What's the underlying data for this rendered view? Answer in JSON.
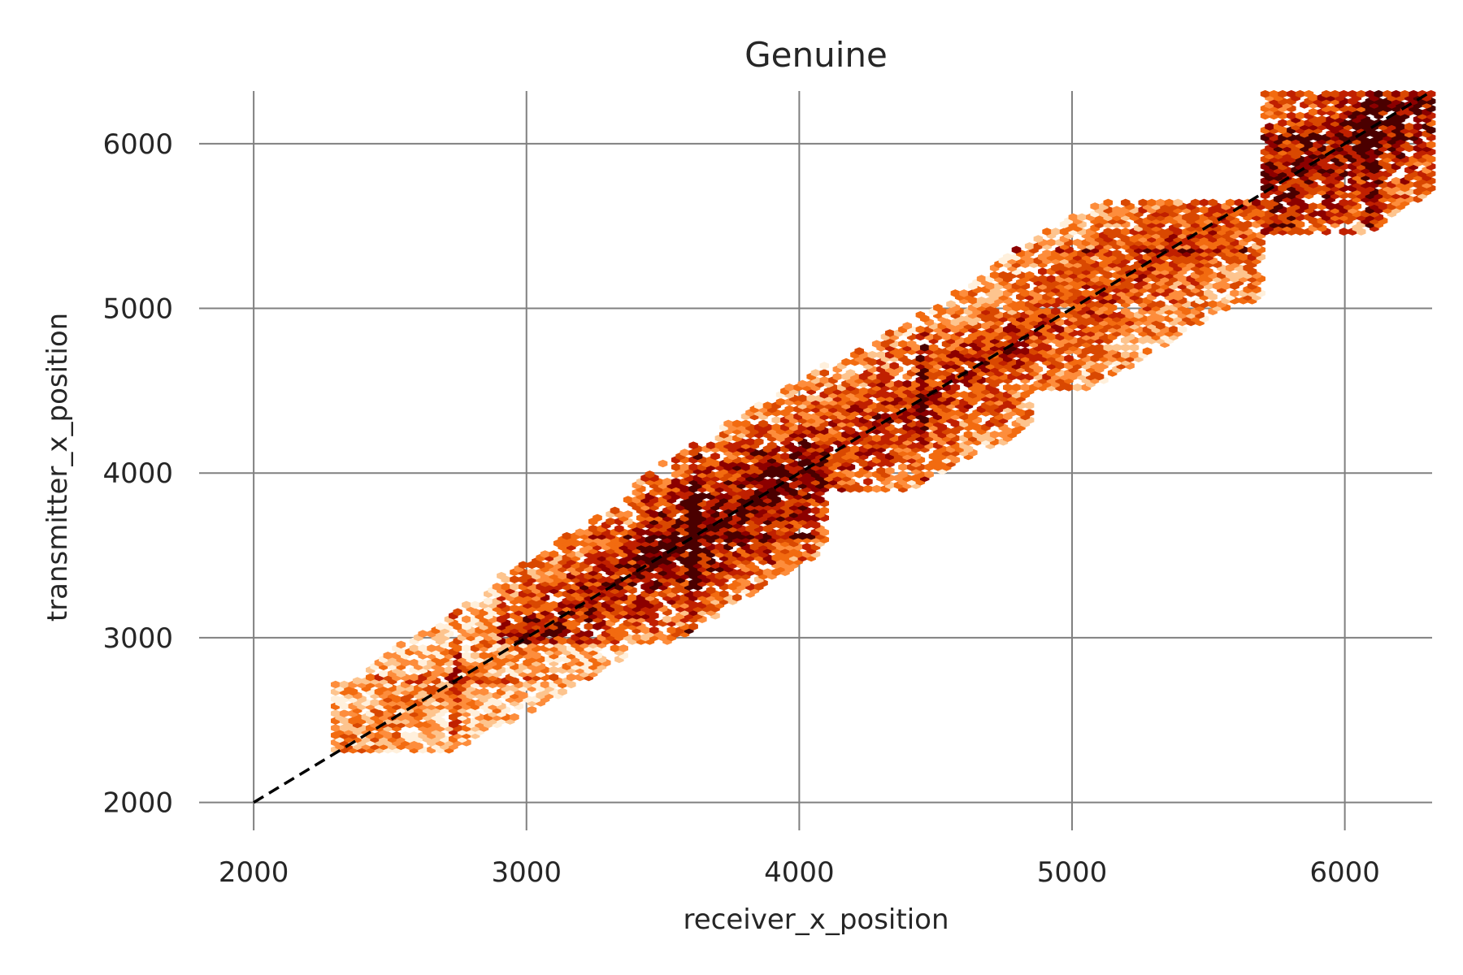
{
  "chart_data": {
    "type": "heatmap",
    "title": "Genuine",
    "xlabel": "receiver_x_position",
    "ylabel": "transmitter_x_position",
    "xlim": [
      1800,
      6320
    ],
    "ylim": [
      1850,
      6320
    ],
    "xticks": [
      2000,
      3000,
      4000,
      5000,
      6000
    ],
    "yticks": [
      2000,
      3000,
      4000,
      5000,
      6000
    ],
    "xtick_labels": [
      "2000",
      "3000",
      "4000",
      "5000",
      "6000"
    ],
    "ytick_labels": [
      "2000",
      "3000",
      "4000",
      "5000",
      "6000"
    ],
    "grid": true,
    "colormap": [
      "#fff0dc",
      "#fdc48e",
      "#fd8d3c",
      "#f26b10",
      "#d94801",
      "#c02000",
      "#8c0000",
      "#4a0000"
    ],
    "grid_color": "#808080",
    "reference_line": {
      "style": "dashed",
      "color": "#000000",
      "x": [
        2000,
        6320
      ],
      "y": [
        2000,
        6320
      ]
    },
    "density_regions": [
      {
        "x_range": [
          2300,
          3360
        ],
        "y_range": [
          2320,
          3340
        ],
        "intensity": 0.35
      },
      {
        "x_range": [
          2900,
          4000
        ],
        "y_range": [
          2970,
          4450
        ],
        "intensity": 0.75
      },
      {
        "x_range": [
          3400,
          4100
        ],
        "y_range": [
          3300,
          4200
        ],
        "intensity": 0.9
      },
      {
        "x_range": [
          3900,
          4850
        ],
        "y_range": [
          3900,
          4900
        ],
        "intensity": 0.7
      },
      {
        "x_range": [
          4400,
          5700
        ],
        "y_range": [
          4500,
          5650
        ],
        "intensity": 0.6
      },
      {
        "x_range": [
          5700,
          6320
        ],
        "y_range": [
          5450,
          6320
        ],
        "intensity": 0.85
      }
    ]
  }
}
